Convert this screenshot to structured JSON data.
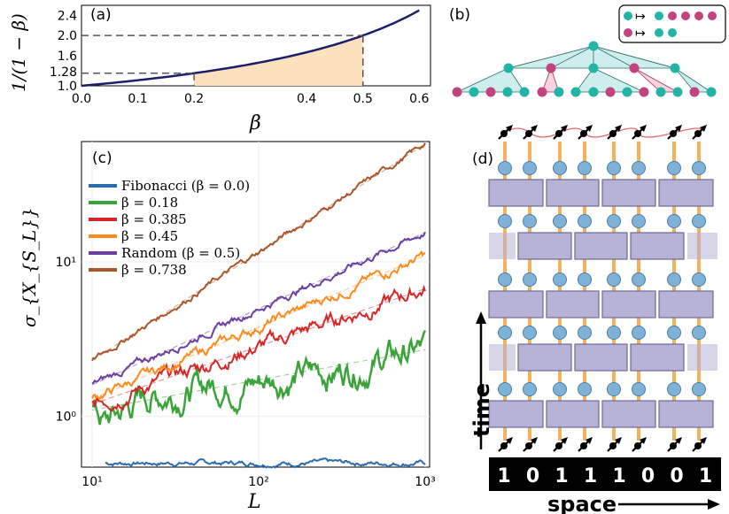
{
  "chart_data": [
    {
      "panel": "(a)",
      "type": "line",
      "xlabel": "β",
      "ylabel": "1/(1 − β)",
      "xlim": [
        0.0,
        0.62
      ],
      "ylim": [
        1.0,
        2.6
      ],
      "x_ticks": [
        "0.0",
        "0.1",
        "0.2",
        "0.4",
        "0.5",
        "0.6"
      ],
      "x_tick_values": [
        0.0,
        0.1,
        0.2,
        0.4,
        0.5,
        0.6
      ],
      "y_ticks": [
        "1.0",
        "1.28",
        "1.6",
        "2.0",
        "2.4"
      ],
      "y_tick_values": [
        1.0,
        1.28,
        1.6,
        2.0,
        2.4
      ],
      "series": [
        {
          "name": "1/(1-β)",
          "color": "#1b1f6b",
          "x_range": [
            0.0,
            0.6
          ]
        }
      ],
      "shaded_region": {
        "from": 0.2,
        "to": 0.5,
        "color": "#fde0bd"
      },
      "guides": [
        {
          "x": 0.2,
          "y": 1.25
        },
        {
          "x": 0.5,
          "y": 2.0
        }
      ]
    },
    {
      "panel": "(c)",
      "type": "line",
      "scale": "log-log",
      "xlabel": "L",
      "ylabel": "σ_{X_{S_L}}",
      "xlim": [
        10,
        1000
      ],
      "ylim": [
        0.47,
        60
      ],
      "x_ticks": [
        "10¹",
        "10²",
        "10³"
      ],
      "y_ticks": [
        "10⁰",
        "10¹"
      ],
      "series": [
        {
          "name": "Fibonacci (β = 0.0)",
          "color": "#2b6cb0",
          "x": [
            12,
            1000
          ],
          "y": [
            0.5,
            0.5
          ],
          "noise": 0.01
        },
        {
          "name": "β = 0.18",
          "color": "#3aa33a",
          "x": [
            10,
            12,
            20,
            50,
            100,
            300,
            1000
          ],
          "y": [
            1.1,
            0.9,
            1.3,
            1.6,
            1.7,
            2.0,
            2.7
          ],
          "noise": 0.06
        },
        {
          "name": "β = 0.385",
          "color": "#d62728",
          "x": [
            10,
            1000
          ],
          "y": [
            1.2,
            6.7
          ],
          "noise": 0.03
        },
        {
          "name": "β = 0.45",
          "color": "#ff8a1c",
          "x": [
            10,
            1000
          ],
          "y": [
            1.3,
            11.0
          ],
          "noise": 0.02
        },
        {
          "name": "Random (β = 0.5)",
          "color": "#6a3fa0",
          "x": [
            10,
            1000
          ],
          "y": [
            1.6,
            15.5
          ],
          "noise": 0.015
        },
        {
          "name": "β = 0.738",
          "color": "#a9562b",
          "x": [
            10,
            1000
          ],
          "y": [
            2.3,
            58.0
          ],
          "noise": 0.012
        }
      ]
    }
  ],
  "panels": {
    "a": {
      "label": "(a)"
    },
    "b": {
      "label": "(b)",
      "rule_1": "↦",
      "rule_2": "↦"
    },
    "c": {
      "label": "(c)"
    },
    "d": {
      "label": "(d)",
      "bits": [
        "1",
        "0",
        "1",
        "1",
        "1",
        "0",
        "0",
        "1"
      ],
      "time_label": "time",
      "space_label": "space"
    }
  },
  "colors": {
    "teal": "#22b5a6",
    "magenta": "#c2447e",
    "gate": "#b7b3d6",
    "orange_line": "#f7b05c",
    "qubit": "#7fb2d6"
  }
}
